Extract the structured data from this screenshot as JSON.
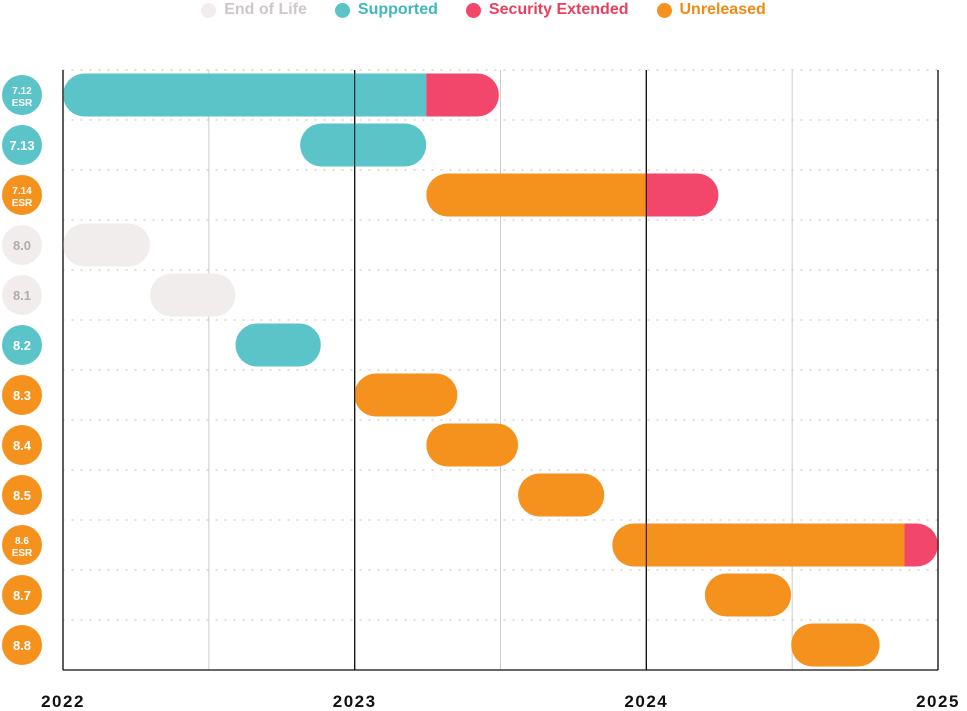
{
  "legend": [
    {
      "key": "eol",
      "label": "End of Life",
      "color": "#f2eded",
      "text_color": "#cfc7c7"
    },
    {
      "key": "supported",
      "label": "Supported",
      "color": "#5bc4c9",
      "text_color": "#3fb7bd"
    },
    {
      "key": "security",
      "label": "Security Extended",
      "color": "#f2466a",
      "text_color": "#e8415f"
    },
    {
      "key": "unreleased",
      "label": "Unreleased",
      "color": "#f5921e",
      "text_color": "#f08a14"
    }
  ],
  "chart_data": {
    "type": "gantt",
    "x_ticks": [
      "2022",
      "2023",
      "2024",
      "2025"
    ],
    "xlim": [
      "2022-01-01",
      "2025-01-01"
    ],
    "grid": true,
    "legend_position": "top-center",
    "rows": [
      {
        "version": "7.12",
        "sub": "ESR",
        "status": "supported",
        "segments": [
          {
            "status": "supported",
            "start": "2022-01-01",
            "end": "2023-04-01"
          },
          {
            "status": "security",
            "start": "2023-04-01",
            "end": "2023-07-01"
          }
        ]
      },
      {
        "version": "7.13",
        "sub": "",
        "status": "supported",
        "segments": [
          {
            "status": "supported",
            "start": "2022-10-25",
            "end": "2023-04-01"
          }
        ]
      },
      {
        "version": "7.14",
        "sub": "ESR",
        "status": "unreleased",
        "segments": [
          {
            "status": "unreleased",
            "start": "2023-04-01",
            "end": "2024-01-01"
          },
          {
            "status": "security",
            "start": "2024-01-01",
            "end": "2024-04-01"
          }
        ]
      },
      {
        "version": "8.0",
        "sub": "",
        "status": "eol",
        "segments": [
          {
            "status": "eol",
            "start": "2022-01-01",
            "end": "2022-04-20"
          }
        ]
      },
      {
        "version": "8.1",
        "sub": "",
        "status": "eol",
        "segments": [
          {
            "status": "eol",
            "start": "2022-04-20",
            "end": "2022-08-05"
          }
        ]
      },
      {
        "version": "8.2",
        "sub": "",
        "status": "supported",
        "segments": [
          {
            "status": "supported",
            "start": "2022-08-05",
            "end": "2022-11-20"
          }
        ]
      },
      {
        "version": "8.3",
        "sub": "",
        "status": "unreleased",
        "segments": [
          {
            "status": "unreleased",
            "start": "2023-01-01",
            "end": "2023-05-10"
          }
        ]
      },
      {
        "version": "8.4",
        "sub": "",
        "status": "unreleased",
        "segments": [
          {
            "status": "unreleased",
            "start": "2023-04-01",
            "end": "2023-07-25"
          }
        ]
      },
      {
        "version": "8.5",
        "sub": "",
        "status": "unreleased",
        "segments": [
          {
            "status": "unreleased",
            "start": "2023-07-25",
            "end": "2023-11-10"
          }
        ]
      },
      {
        "version": "8.6",
        "sub": "ESR",
        "status": "unreleased",
        "segments": [
          {
            "status": "unreleased",
            "start": "2023-11-20",
            "end": "2024-11-20"
          },
          {
            "status": "security",
            "start": "2024-11-20",
            "end": "2025-01-01"
          }
        ]
      },
      {
        "version": "8.7",
        "sub": "",
        "status": "unreleased",
        "segments": [
          {
            "status": "unreleased",
            "start": "2024-03-15",
            "end": "2024-07-01"
          }
        ]
      },
      {
        "version": "8.8",
        "sub": "",
        "status": "unreleased",
        "segments": [
          {
            "status": "unreleased",
            "start": "2024-07-01",
            "end": "2024-10-20"
          }
        ]
      }
    ]
  }
}
